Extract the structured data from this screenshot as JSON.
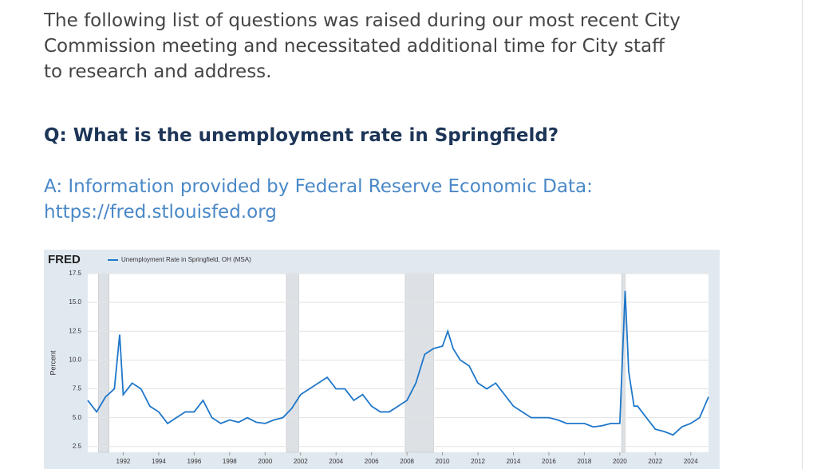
{
  "intro": "The following list of questions was raised during our most recent City Commission meeting and necessitated additional time for City staff to research and address.",
  "question": "Q: What is the unemployment rate in Springfield?",
  "answer": {
    "text": "A: Information provided by Federal Reserve Economic Data:",
    "link": "https://fred.stlouisfed.org"
  },
  "chart_data": {
    "type": "line",
    "logo": "FRED",
    "y_label": "Percent",
    "x": [
      1990.0,
      1990.5,
      1991.0,
      1991.5,
      1991.8,
      1992.0,
      1992.5,
      1993.0,
      1993.5,
      1994.0,
      1994.5,
      1995.0,
      1995.5,
      1996.0,
      1996.5,
      1997.0,
      1997.5,
      1998.0,
      1998.5,
      1999.0,
      1999.5,
      2000.0,
      2000.5,
      2001.0,
      2001.5,
      2002.0,
      2002.5,
      2003.0,
      2003.5,
      2004.0,
      2004.5,
      2005.0,
      2005.5,
      2006.0,
      2006.5,
      2007.0,
      2007.5,
      2008.0,
      2008.5,
      2009.0,
      2009.5,
      2010.0,
      2010.3,
      2010.6,
      2011.0,
      2011.5,
      2012.0,
      2012.5,
      2013.0,
      2013.5,
      2014.0,
      2014.5,
      2015.0,
      2015.5,
      2016.0,
      2016.5,
      2017.0,
      2017.5,
      2018.0,
      2018.5,
      2019.0,
      2019.5,
      2020.0,
      2020.3,
      2020.5,
      2020.8,
      2021.0,
      2021.5,
      2022.0,
      2022.5,
      2023.0,
      2023.5,
      2024.0,
      2024.5,
      2025.0
    ],
    "series": [
      {
        "name": "Unemployment Rate in Springfield, OH (MSA)",
        "color": "#1f77c9",
        "values": [
          6.5,
          5.5,
          6.8,
          7.5,
          12.2,
          7.0,
          8.0,
          7.5,
          6.0,
          5.5,
          4.5,
          5.0,
          5.5,
          5.5,
          6.5,
          5.0,
          4.5,
          4.8,
          4.6,
          5.0,
          4.6,
          4.5,
          4.8,
          5.0,
          5.8,
          7.0,
          7.5,
          8.0,
          8.5,
          7.5,
          7.5,
          6.5,
          7.0,
          6.0,
          5.5,
          5.5,
          6.0,
          6.5,
          8.0,
          10.5,
          11.0,
          11.2,
          12.5,
          11.0,
          10.0,
          9.5,
          8.0,
          7.5,
          8.0,
          7.0,
          6.0,
          5.5,
          5.0,
          5.0,
          5.0,
          4.8,
          4.5,
          4.5,
          4.5,
          4.2,
          4.3,
          4.5,
          4.5,
          16.0,
          9.0,
          6.0,
          6.0,
          5.0,
          4.0,
          3.8,
          3.5,
          4.2,
          4.5,
          5.0,
          6.8
        ]
      }
    ],
    "recessions": [
      [
        1990.6,
        1991.2
      ],
      [
        2001.2,
        2001.9
      ],
      [
        2007.9,
        2009.5
      ],
      [
        2020.1,
        2020.3
      ]
    ],
    "recession_color": "#dde1e6",
    "xlim": [
      1990,
      2025
    ],
    "xticks": [
      1992,
      1994,
      1996,
      1998,
      2000,
      2002,
      2004,
      2006,
      2008,
      2010,
      2012,
      2014,
      2016,
      2018,
      2020,
      2022,
      2024
    ],
    "ylim": [
      2,
      17.5
    ],
    "yticks": [
      {
        "value": 2.5,
        "label": "2.5"
      },
      {
        "value": 5,
        "label": "5.0"
      },
      {
        "value": 7.5,
        "label": "7.5"
      },
      {
        "value": 10,
        "label": "10.0"
      },
      {
        "value": 12.5,
        "label": "12.5"
      },
      {
        "value": 15,
        "label": "15.0"
      },
      {
        "value": 17.5,
        "label": "17.5"
      }
    ],
    "grid": true
  }
}
